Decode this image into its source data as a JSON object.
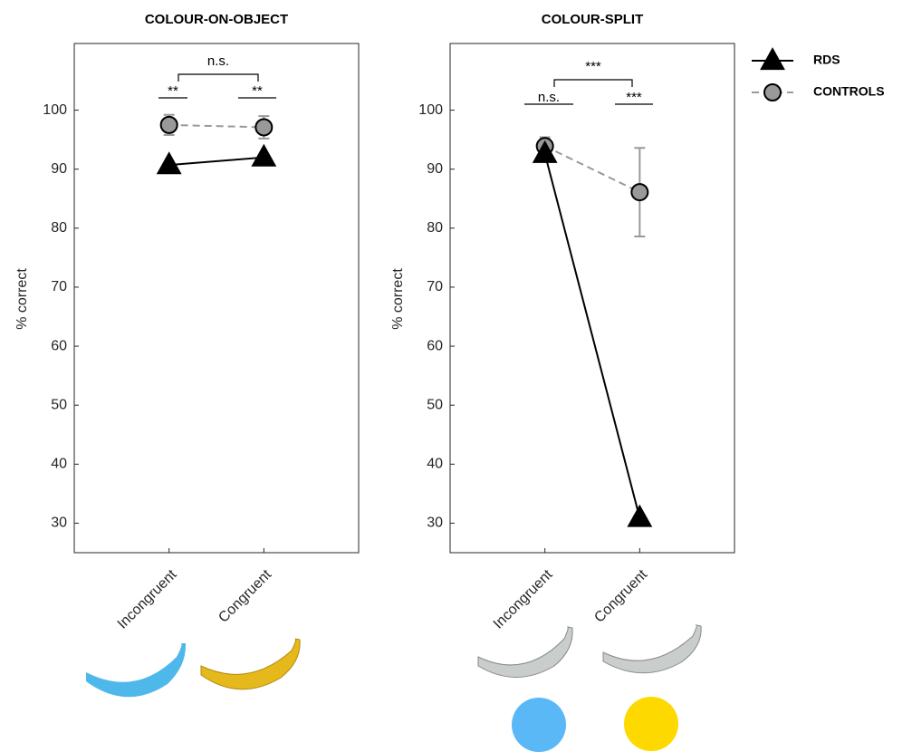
{
  "chart_data": [
    {
      "type": "line",
      "title": "COLOUR-ON-OBJECT",
      "ylabel": "% correct",
      "categories": [
        "Incongruent",
        "Congruent"
      ],
      "x": [
        1,
        2
      ],
      "xlim": [
        0,
        3
      ],
      "ylim": [
        25,
        111.3
      ],
      "yticks": [
        30,
        40,
        50,
        60,
        70,
        80,
        90,
        100
      ],
      "series": [
        {
          "color": "#000000",
          "marker": "triangle",
          "dash": false,
          "values": [
            90.7,
            92.0
          ]
        },
        {
          "color": "#999999",
          "marker": "circle",
          "dash": true,
          "values": [
            97.5,
            97.1
          ],
          "errors": [
            1.7,
            1.9
          ]
        }
      ],
      "annotations": [
        {
          "text": "**"
        },
        {
          "text": "**"
        },
        {
          "text": "n.s."
        }
      ]
    },
    {
      "type": "line",
      "title": "COLOUR-SPLIT",
      "ylabel": "% correct",
      "categories": [
        "Incongruent",
        "Congruent"
      ],
      "x": [
        1,
        2
      ],
      "xlim": [
        0,
        3
      ],
      "ylim": [
        25,
        111.3
      ],
      "yticks": [
        30,
        40,
        50,
        60,
        70,
        80,
        90,
        100
      ],
      "legend": "outside right",
      "series": [
        {
          "name": "RDS",
          "color": "#000000",
          "marker": "triangle",
          "dash": false,
          "values": [
            92.6,
            30.9
          ]
        },
        {
          "name": "CONTROLS",
          "color": "#999999",
          "marker": "circle",
          "dash": true,
          "values": [
            93.9,
            86.1
          ],
          "errors": [
            1.5,
            7.5
          ]
        }
      ],
      "annotations": [
        {
          "text": "n.s."
        },
        {
          "text": "***"
        },
        {
          "text": "***"
        }
      ]
    }
  ]
}
